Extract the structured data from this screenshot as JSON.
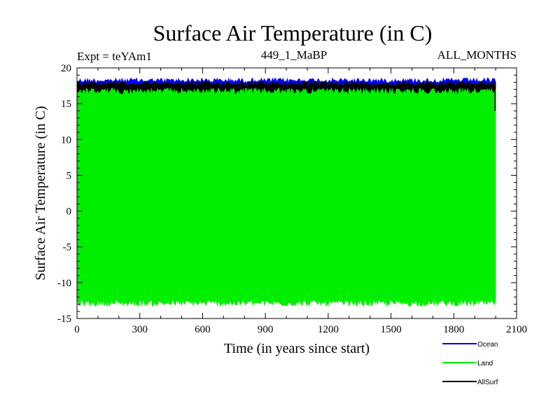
{
  "chart_data": {
    "type": "area",
    "title": "Surface Air Temperature (in C)",
    "subtitle_left": "Expt = teYAm1",
    "subtitle_center": "449_1_MaBP",
    "subtitle_right": "ALL_MONTHS",
    "xlabel": "Time (in years since start)",
    "ylabel": "Surface Air Temperature (in C)",
    "xlim": [
      0,
      2100
    ],
    "ylim": [
      -15,
      20
    ],
    "x_ticks": [
      0,
      300,
      600,
      900,
      1200,
      1500,
      1800,
      2100
    ],
    "y_ticks": [
      -15,
      -10,
      -5,
      0,
      5,
      10,
      15,
      20
    ],
    "x_minor_step": 100,
    "y_minor_step": 1,
    "data_x_range": [
      0,
      2000
    ],
    "series": [
      {
        "name": "Ocean",
        "color": "#0000ff",
        "band": [
          16.8,
          18.6
        ],
        "mean": 17.6
      },
      {
        "name": "Land",
        "color": "#00ee00",
        "band": [
          -13.3,
          17.2
        ],
        "mean": 2.0
      },
      {
        "name": "AllSurf",
        "color": "#000000",
        "band": [
          14.0,
          18.2
        ],
        "mean": 17.0
      }
    ],
    "legend_position": "bottom-right"
  }
}
